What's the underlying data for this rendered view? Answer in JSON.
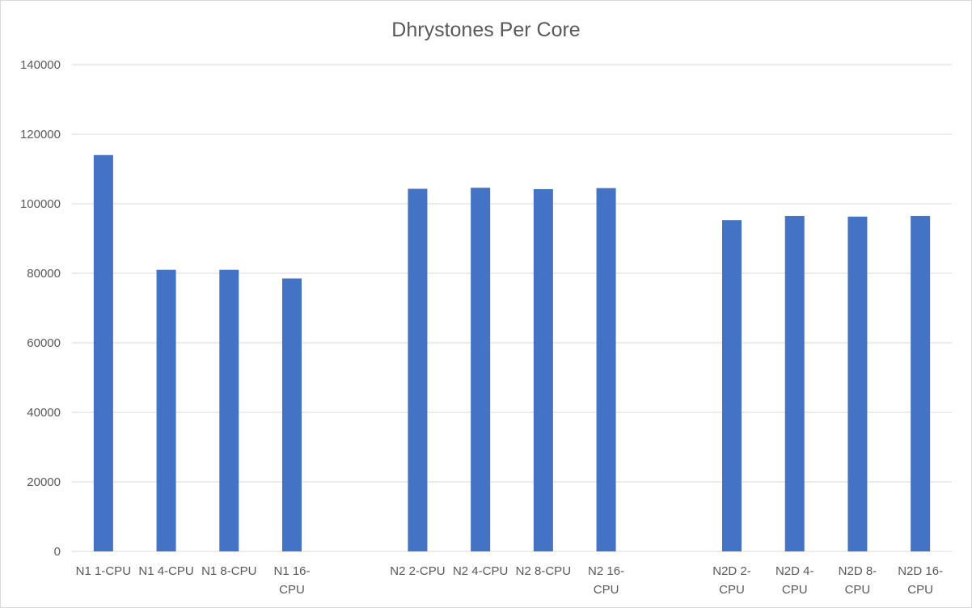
{
  "chart_data": {
    "type": "bar",
    "title": "Dhrystones Per Core",
    "xlabel": "",
    "ylabel": "",
    "ylim": [
      0,
      140000
    ],
    "yticks": [
      "0",
      "20000",
      "40000",
      "60000",
      "80000",
      "100000",
      "120000",
      "140000"
    ],
    "grid": true,
    "legend": "none",
    "bar_color": "#4472C4",
    "categories": [
      "N1 1-CPU",
      "N1 4-CPU",
      "N1 8-CPU",
      "N1 16-CPU",
      "",
      "N2 2-CPU",
      "N2 4-CPU",
      "N2 8-CPU",
      "N2 16-CPU",
      "",
      "N2D 2-CPU",
      "N2D 4-CPU",
      "N2D 8-CPU",
      "N2D 16-CPU"
    ],
    "category_label_lines": [
      [
        "N1 1-CPU"
      ],
      [
        "N1 4-CPU"
      ],
      [
        "N1 8-CPU"
      ],
      [
        "N1 16-",
        "CPU"
      ],
      [],
      [
        "N2 2-CPU"
      ],
      [
        "N2 4-CPU"
      ],
      [
        "N2 8-CPU"
      ],
      [
        "N2 16-",
        "CPU"
      ],
      [],
      [
        "N2D 2-",
        "CPU"
      ],
      [
        "N2D 4-",
        "CPU"
      ],
      [
        "N2D 8-",
        "CPU"
      ],
      [
        "N2D 16-",
        "CPU"
      ]
    ],
    "values": [
      114000,
      81000,
      81000,
      78500,
      null,
      104300,
      104600,
      104200,
      104500,
      null,
      95300,
      96500,
      96300,
      96500
    ]
  }
}
